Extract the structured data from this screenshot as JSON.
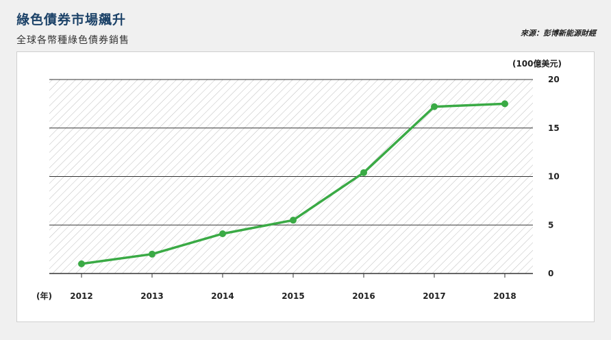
{
  "header": {
    "title": "綠色債券市場飆升",
    "subtitle": "全球各幣種綠色債券銷售",
    "source": "來源：彭博新能源財經"
  },
  "chart_data": {
    "type": "line",
    "title": "綠色債券市場飆升",
    "subtitle": "全球各幣種綠色債券銷售",
    "x": [
      "2012",
      "2013",
      "2014",
      "2015",
      "2016",
      "2017",
      "2018"
    ],
    "series": [
      {
        "values": [
          1.0,
          2.0,
          4.1,
          5.5,
          10.4,
          17.2,
          17.5
        ]
      }
    ],
    "xlabel": "(年)",
    "ylabel": "(100億美元)",
    "ylim": [
      0,
      20
    ],
    "yticks": [
      0,
      5,
      10,
      15,
      20
    ],
    "grid": true,
    "hatched_background": true,
    "colors": {
      "line": "#3aaa45",
      "grid": "#333333",
      "hatch": "#bdbdbd"
    }
  }
}
